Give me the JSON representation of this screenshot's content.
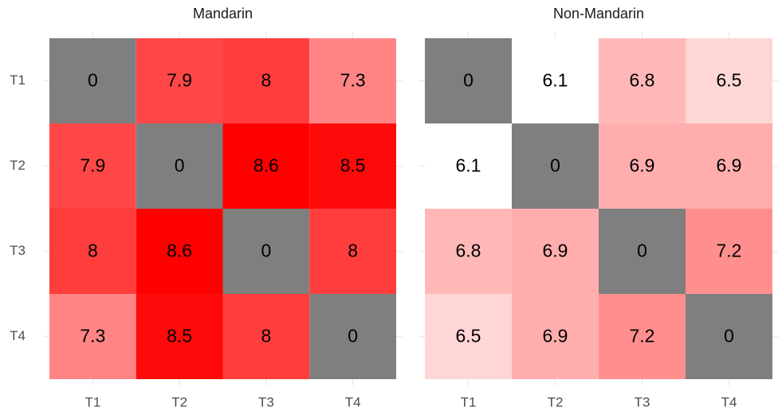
{
  "chart_data": [
    {
      "type": "heatmap",
      "title": "Mandarin",
      "x": [
        "T1",
        "T2",
        "T3",
        "T4"
      ],
      "y": [
        "T1",
        "T2",
        "T3",
        "T4"
      ],
      "values": [
        [
          0,
          7.9,
          8,
          7.3
        ],
        [
          7.9,
          0,
          8.6,
          8.5
        ],
        [
          8,
          8.6,
          0,
          8
        ],
        [
          7.3,
          8.5,
          8,
          0
        ]
      ],
      "color_low": "#ffffff",
      "color_high": "#ff0000",
      "diagonal_color": "#7f7f7f"
    },
    {
      "type": "heatmap",
      "title": "Non-Mandarin",
      "x": [
        "T1",
        "T2",
        "T3",
        "T4"
      ],
      "y": [
        "T1",
        "T2",
        "T3",
        "T4"
      ],
      "values": [
        [
          0,
          6.1,
          6.8,
          6.5
        ],
        [
          6.1,
          0,
          6.9,
          6.9
        ],
        [
          6.8,
          6.9,
          0,
          7.2
        ],
        [
          6.5,
          6.9,
          7.2,
          0
        ]
      ],
      "color_low": "#ffffff",
      "color_high": "#ff0000",
      "diagonal_color": "#7f7f7f"
    }
  ]
}
